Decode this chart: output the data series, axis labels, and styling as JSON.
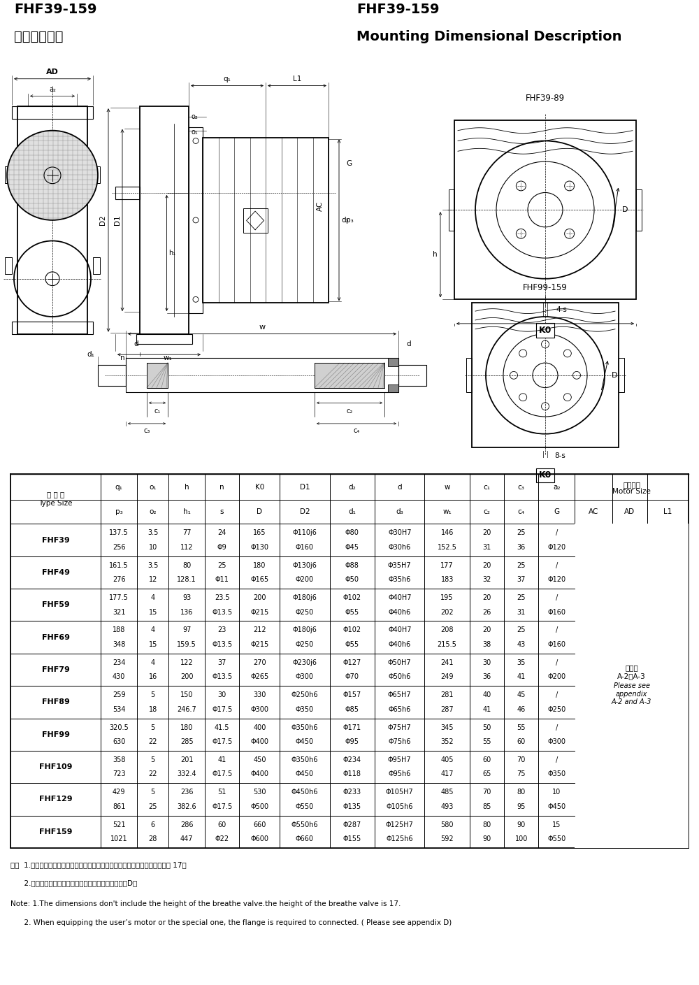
{
  "title_left_line1": "FHF39-159",
  "title_left_line2": "安装结构尺寸",
  "title_right_line1": "FHF39-159",
  "title_right_line2": "Mounting Dimensional Description",
  "label_fhf3989": "FHF39-89",
  "label_fhf99159": "FHF99-159",
  "table_rows": [
    {
      "name": "FHF39",
      "row1": [
        "137.5",
        "3.5",
        "77",
        "24",
        "165",
        "Φ110j6",
        "Φ80",
        "Φ30H7",
        "146",
        "20",
        "25",
        "/"
      ],
      "row2": [
        "256",
        "10",
        "112",
        "Φ9",
        "Φ130",
        "Φ160",
        "Φ45",
        "Φ30h6",
        "152.5",
        "31",
        "36",
        "Φ120"
      ]
    },
    {
      "name": "FHF49",
      "row1": [
        "161.5",
        "3.5",
        "80",
        "25",
        "180",
        "Φ130j6",
        "Φ88",
        "Φ35H7",
        "177",
        "20",
        "25",
        "/"
      ],
      "row2": [
        "276",
        "12",
        "128.1",
        "Φ11",
        "Φ165",
        "Φ200",
        "Φ50",
        "Φ35h6",
        "183",
        "32",
        "37",
        "Φ120"
      ]
    },
    {
      "name": "FHF59",
      "row1": [
        "177.5",
        "4",
        "93",
        "23.5",
        "200",
        "Φ180j6",
        "Φ102",
        "Φ40H7",
        "195",
        "20",
        "25",
        "/"
      ],
      "row2": [
        "321",
        "15",
        "136",
        "Φ13.5",
        "Φ215",
        "Φ250",
        "Φ55",
        "Φ40h6",
        "202",
        "26",
        "31",
        "Φ160"
      ]
    },
    {
      "name": "FHF69",
      "row1": [
        "188",
        "4",
        "97",
        "23",
        "212",
        "Φ180j6",
        "Φ102",
        "Φ40H7",
        "208",
        "20",
        "25",
        "/"
      ],
      "row2": [
        "348",
        "15",
        "159.5",
        "Φ13.5",
        "Φ215",
        "Φ250",
        "Φ55",
        "Φ40h6",
        "215.5",
        "38",
        "43",
        "Φ160"
      ]
    },
    {
      "name": "FHF79",
      "row1": [
        "234",
        "4",
        "122",
        "37",
        "270",
        "Φ230j6",
        "Φ127",
        "Φ50H7",
        "241",
        "30",
        "35",
        "/"
      ],
      "row2": [
        "430",
        "16",
        "200",
        "Φ13.5",
        "Φ265",
        "Φ300",
        "Φ70",
        "Φ50h6",
        "249",
        "36",
        "41",
        "Φ200"
      ]
    },
    {
      "name": "FHF89",
      "row1": [
        "259",
        "5",
        "150",
        "30",
        "330",
        "Φ250h6",
        "Φ157",
        "Φ65H7",
        "281",
        "40",
        "45",
        "/"
      ],
      "row2": [
        "534",
        "18",
        "246.7",
        "Φ17.5",
        "Φ300",
        "Φ350",
        "Φ85",
        "Φ65h6",
        "287",
        "41",
        "46",
        "Φ250"
      ]
    },
    {
      "name": "FHF99",
      "row1": [
        "320.5",
        "5",
        "180",
        "41.5",
        "400",
        "Φ350h6",
        "Φ171",
        "Φ75H7",
        "345",
        "50",
        "55",
        "/"
      ],
      "row2": [
        "630",
        "22",
        "285",
        "Φ17.5",
        "Φ400",
        "Φ450",
        "Φ95",
        "Φ75h6",
        "352",
        "55",
        "60",
        "Φ300"
      ]
    },
    {
      "name": "FHF109",
      "row1": [
        "358",
        "5",
        "201",
        "41",
        "450",
        "Φ350h6",
        "Φ234",
        "Φ95H7",
        "405",
        "60",
        "70",
        "/"
      ],
      "row2": [
        "723",
        "22",
        "332.4",
        "Φ17.5",
        "Φ400",
        "Φ450",
        "Φ118",
        "Φ95h6",
        "417",
        "65",
        "75",
        "Φ350"
      ]
    },
    {
      "name": "FHF129",
      "row1": [
        "429",
        "5",
        "236",
        "51",
        "530",
        "Φ450h6",
        "Φ233",
        "Φ105H7",
        "485",
        "70",
        "80",
        "10"
      ],
      "row2": [
        "861",
        "25",
        "382.6",
        "Φ17.5",
        "Φ500",
        "Φ550",
        "Φ135",
        "Φ105h6",
        "493",
        "85",
        "95",
        "Φ450"
      ]
    },
    {
      "name": "FHF159",
      "row1": [
        "521",
        "6",
        "286",
        "60",
        "660",
        "Φ550h6",
        "Φ287",
        "Φ125H7",
        "580",
        "80",
        "90",
        "15"
      ],
      "row2": [
        "1021",
        "28",
        "447",
        "Φ22",
        "Φ600",
        "Φ660",
        "Φ155",
        "Φ125h6",
        "592",
        "90",
        "100",
        "Φ550"
      ]
    }
  ],
  "note_zh1": "注：  1.减速机部分的外形尺寸，未包含通气帽的高度尺寸。通气帽的高度尺寸为 17。",
  "note_zh2": "      2.电机需方配或配特殊电机时需加联接法兰（见附录D）",
  "note_en1": "Note: 1.The dimensions don't include the height of the breathe valve.the height of the breathe valve is 17.",
  "note_en2": "      2. When equipping the user’s motor or the special one, the flange is required to connected. ( Please see appendix D)",
  "bg_color": "#ffffff"
}
